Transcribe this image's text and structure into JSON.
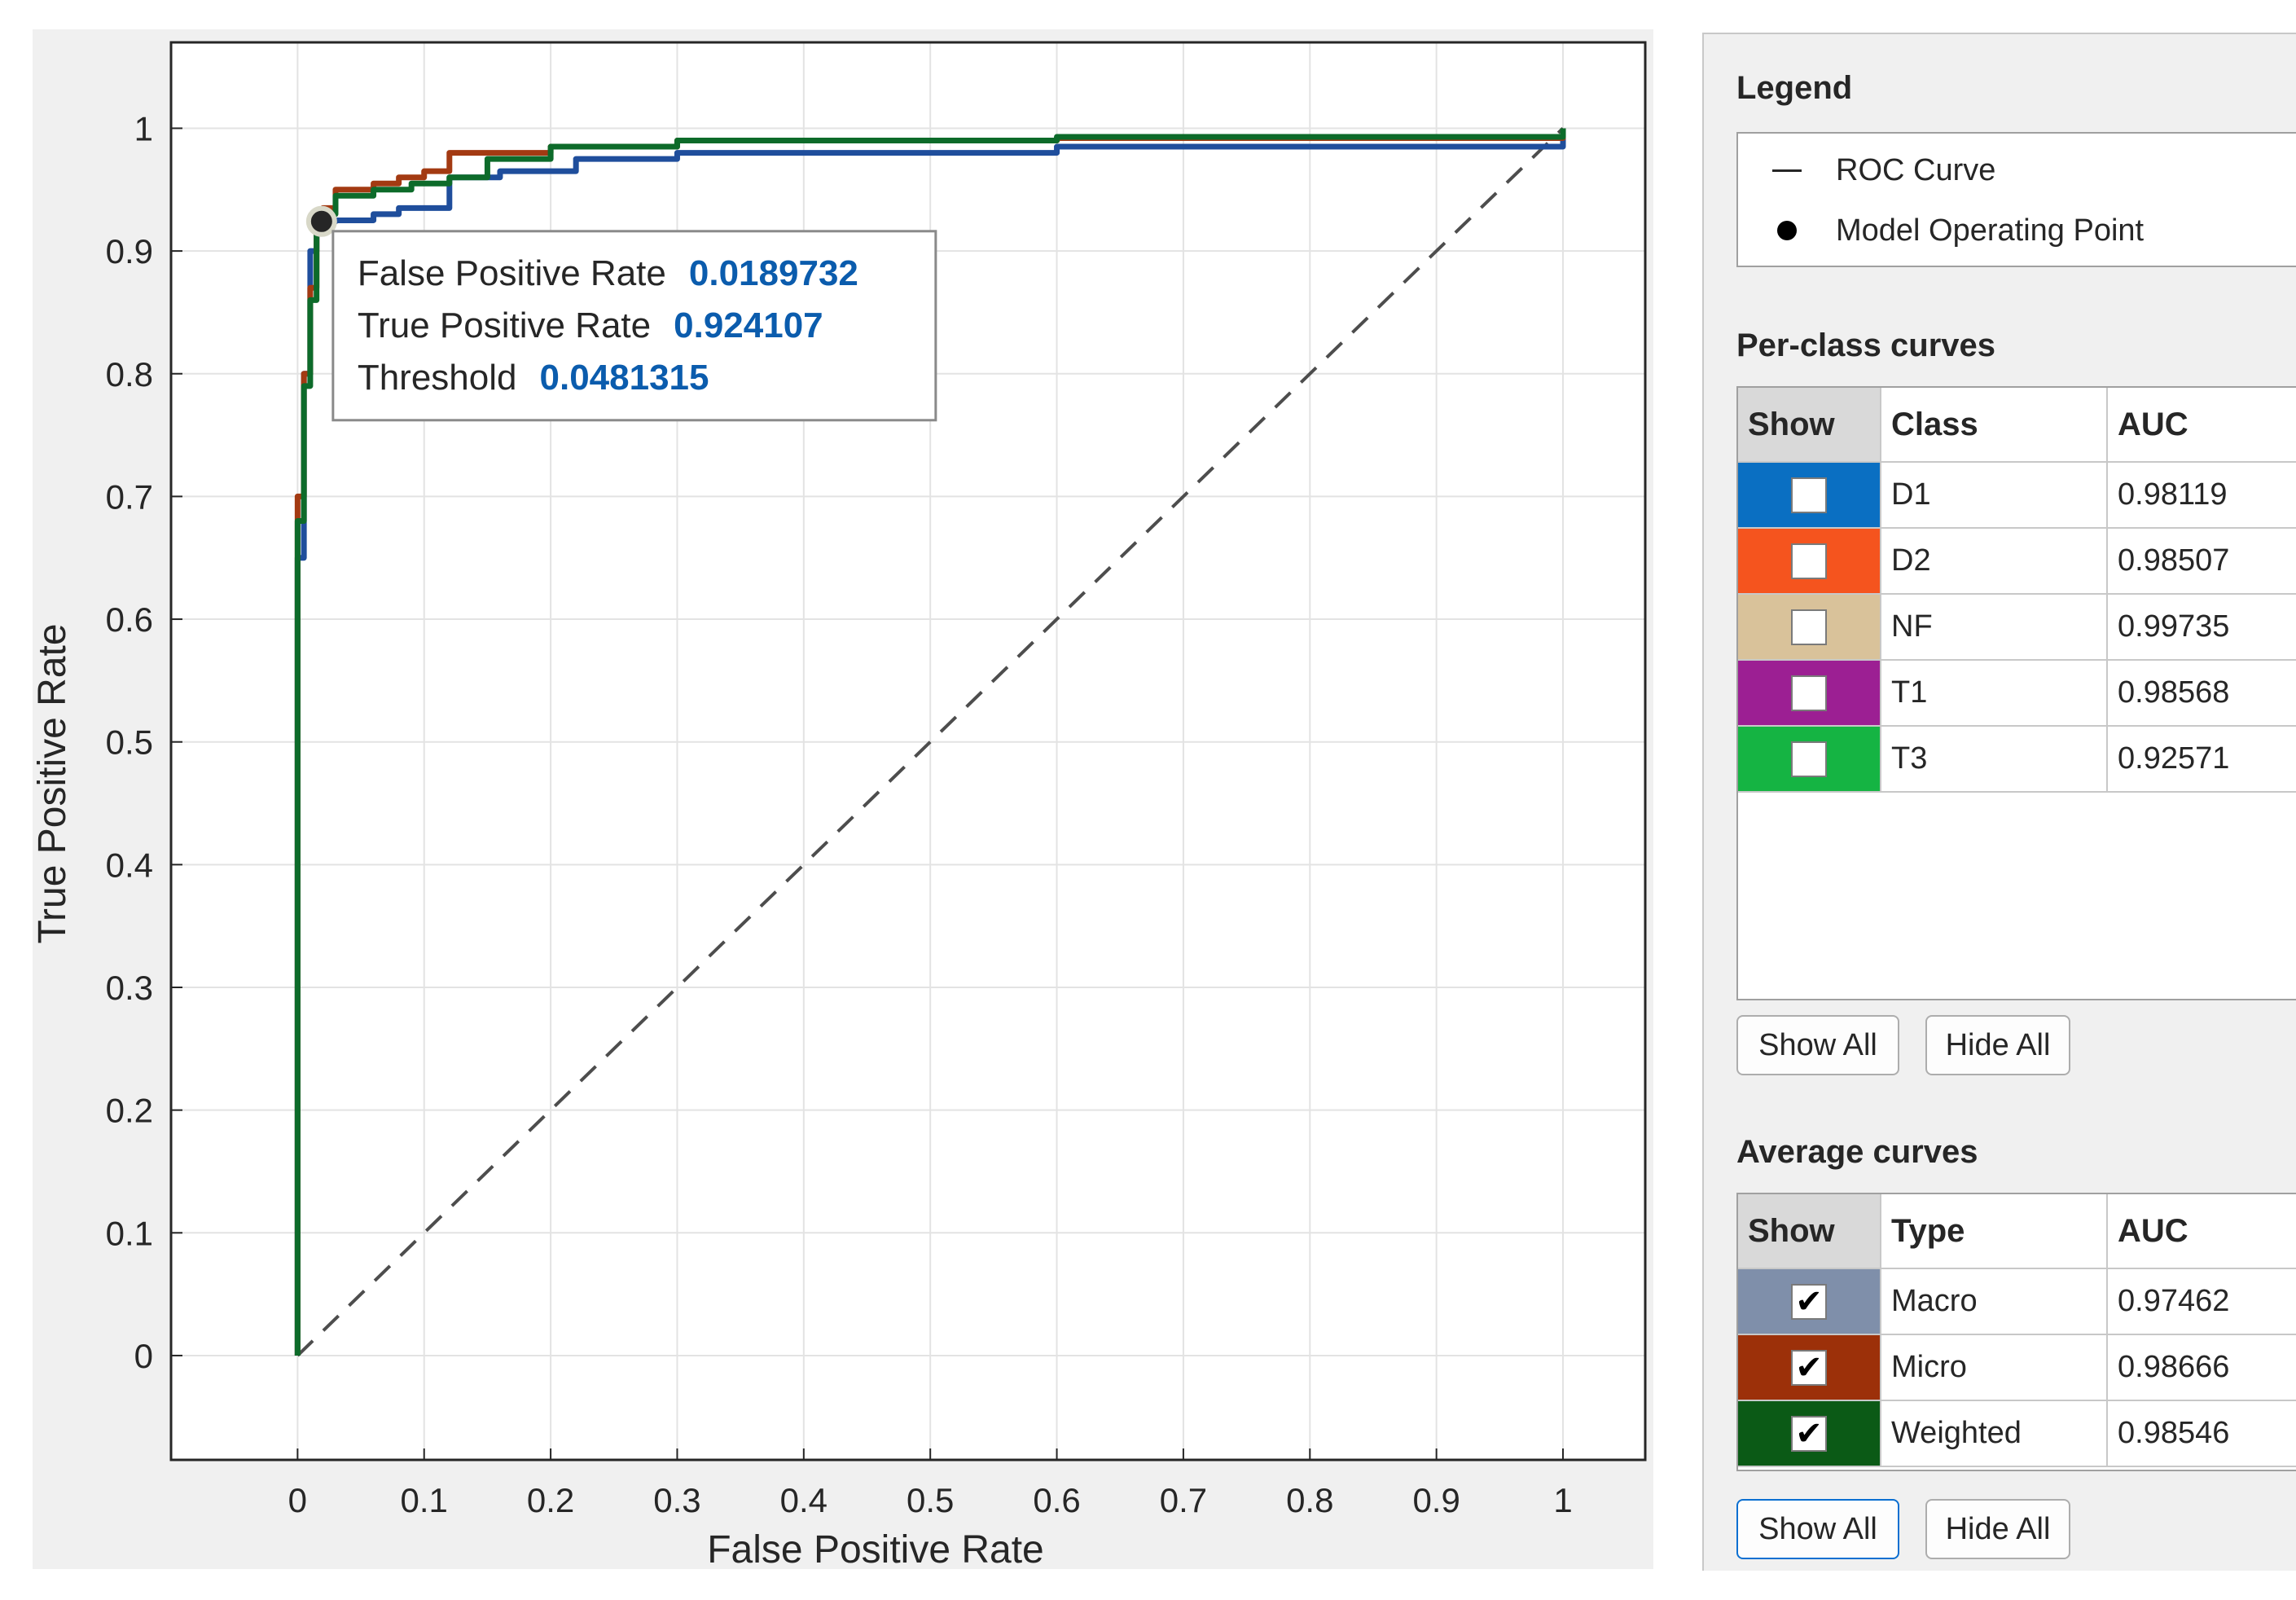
{
  "chart_data": {
    "type": "line",
    "title": "",
    "xlabel": "False Positive Rate",
    "ylabel": "True Positive Rate",
    "xlim": [
      -0.1,
      1.065
    ],
    "ylim": [
      -0.085,
      1.07
    ],
    "grid": true,
    "xticks": [
      "0",
      "0.1",
      "0.2",
      "0.3",
      "0.4",
      "0.5",
      "0.6",
      "0.7",
      "0.8",
      "0.9",
      "1"
    ],
    "yticks": [
      "0",
      "0.1",
      "0.2",
      "0.3",
      "0.4",
      "0.5",
      "0.6",
      "0.7",
      "0.8",
      "0.9",
      "1"
    ],
    "series": [
      {
        "name": "Macro",
        "color": "#1f4e9c",
        "x": [
          0,
          0,
          0.005,
          0.005,
          0.01,
          0.01,
          0.015,
          0.02,
          0.03,
          0.06,
          0.08,
          0.12,
          0.12,
          0.16,
          0.22,
          0.3,
          0.6,
          1.0
        ],
        "y": [
          0,
          0.65,
          0.75,
          0.8,
          0.85,
          0.9,
          0.92,
          0.924,
          0.925,
          0.93,
          0.935,
          0.94,
          0.96,
          0.965,
          0.975,
          0.98,
          0.985,
          1.0
        ]
      },
      {
        "name": "Micro",
        "color": "#a33a12",
        "x": [
          0,
          0,
          0.005,
          0.01,
          0.015,
          0.02,
          0.03,
          0.06,
          0.08,
          0.1,
          0.12,
          0.12,
          0.2,
          0.3,
          0.6,
          1.0
        ],
        "y": [
          0,
          0.7,
          0.8,
          0.87,
          0.92,
          0.935,
          0.95,
          0.955,
          0.96,
          0.965,
          0.97,
          0.98,
          0.985,
          0.99,
          0.992,
          1.0
        ]
      },
      {
        "name": "Weighted",
        "color": "#0d6b2a",
        "x": [
          0,
          0,
          0.005,
          0.01,
          0.015,
          0.02,
          0.03,
          0.06,
          0.09,
          0.12,
          0.15,
          0.2,
          0.3,
          0.6,
          1.0
        ],
        "y": [
          0,
          0.68,
          0.79,
          0.86,
          0.915,
          0.93,
          0.945,
          0.95,
          0.955,
          0.96,
          0.975,
          0.985,
          0.99,
          0.993,
          1.0
        ]
      }
    ],
    "reference_line": {
      "x": [
        0,
        1
      ],
      "y": [
        0,
        1
      ],
      "style": "dashed",
      "color": "#4d4d4d"
    },
    "operating_point": {
      "x": 0.0189732,
      "y": 0.924107
    },
    "datatip": {
      "rows": [
        {
          "label": "False  Positive  Rate",
          "value": "0.0189732"
        },
        {
          "label": "True  Positive  Rate",
          "value": "0.924107"
        },
        {
          "label": "Threshold",
          "value": "0.0481315"
        }
      ]
    }
  },
  "panel": {
    "legend_title": "Legend",
    "legend_items": [
      {
        "symbol": "line",
        "label": "ROC Curve"
      },
      {
        "symbol": "dot",
        "label": "Model Operating Point"
      }
    ],
    "per_class": {
      "title": "Per-class curves",
      "headers": {
        "show": "Show",
        "name": "Class",
        "auc": "AUC"
      },
      "rows": [
        {
          "name": "D1",
          "auc": "0.98119",
          "color": "#0a6fc2",
          "checked": false
        },
        {
          "name": "D2",
          "auc": "0.98507",
          "color": "#f5541e",
          "checked": false
        },
        {
          "name": "NF",
          "auc": "0.99735",
          "color": "#d9c29a",
          "checked": false
        },
        {
          "name": "T1",
          "auc": "0.98568",
          "color": "#9c1f93",
          "checked": false
        },
        {
          "name": "T3",
          "auc": "0.92571",
          "color": "#15b443",
          "checked": false
        }
      ],
      "show_all": "Show All",
      "hide_all": "Hide All"
    },
    "average": {
      "title": "Average curves",
      "headers": {
        "show": "Show",
        "name": "Type",
        "auc": "AUC"
      },
      "rows": [
        {
          "name": "Macro",
          "auc": "0.97462",
          "color": "#7f8faa",
          "checked": true
        },
        {
          "name": "Micro",
          "auc": "0.98666",
          "color": "#9c3009",
          "checked": true
        },
        {
          "name": "Weighted",
          "auc": "0.98546",
          "color": "#0b5a16",
          "checked": true
        }
      ],
      "show_all": "Show All",
      "hide_all": "Hide All"
    }
  }
}
